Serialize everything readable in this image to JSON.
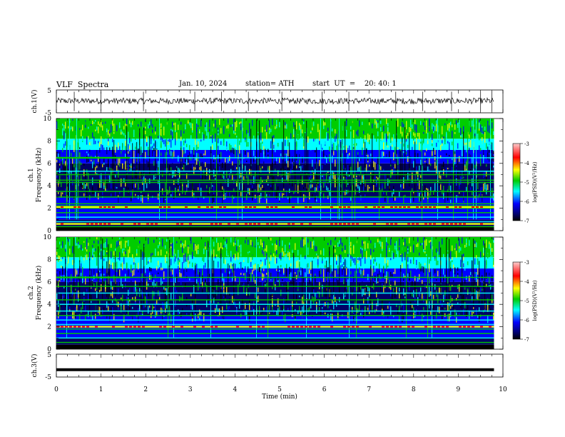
{
  "header": {
    "title": "VLF  Spectra",
    "date": "Jan. 10, 2024",
    "station": "station= ATH",
    "start": "start  UT  =    20: 40: 1"
  },
  "colors": {
    "black": "#000000",
    "navy": "#000066",
    "blue": "#0000ff",
    "cyan": "#00ffff",
    "green": "#00cc00",
    "yellow": "#ffff00",
    "red": "#ff0000",
    "pink": "#ffbbbb"
  },
  "chart_data": [
    {
      "type": "line",
      "id": "ch1-waveform",
      "ylabel": "ch.1(V)",
      "yticks": [
        "5",
        "-5"
      ],
      "ylim": [
        -5,
        5
      ],
      "xlim": [
        0,
        10
      ],
      "level": 0.2,
      "noise_amplitude": 0.6,
      "spikes": [
        0.4,
        1.0,
        1.95,
        3.1,
        3.7,
        4.3,
        5.05,
        5.95,
        6.55,
        7.6,
        8.2,
        8.85,
        9.5,
        9.75
      ]
    },
    {
      "type": "heatmap",
      "id": "ch1-spectrogram",
      "ylabel_1": "ch.1",
      "ylabel_2": "Frequency  (kHz)",
      "yticks": [
        "0",
        "2",
        "4",
        "6",
        "8",
        "10"
      ],
      "ylim": [
        0,
        10
      ],
      "xlim": [
        0,
        9.8
      ],
      "colorbar": {
        "label": "log(PSD)(V²/Hz)",
        "ticks": [
          "-3",
          "-4",
          "-5",
          "-6",
          "-7"
        ],
        "range": [
          -7,
          -3
        ]
      },
      "lines_khz": [
        0.35,
        0.6,
        0.8,
        1.2,
        1.6,
        2.0,
        2.2,
        2.4,
        3.0,
        3.5,
        4.3,
        4.5,
        5.0,
        5.3,
        6.5
      ],
      "red_lines_khz": [
        2.1,
        0.6
      ],
      "segment_line": {
        "khz": 6.5,
        "from_min": 0,
        "to_min": 1.65
      }
    },
    {
      "type": "heatmap",
      "id": "ch2-spectrogram",
      "ylabel_1": "ch.2",
      "ylabel_2": "Frequency  (kHz)",
      "yticks": [
        "0",
        "2",
        "4",
        "6",
        "8",
        "10"
      ],
      "ylim": [
        0,
        10
      ],
      "xlim": [
        0,
        9.8
      ],
      "colorbar": {
        "label": "log(PSD)(V²/Hz)",
        "ticks": [
          "-3",
          "-4",
          "-5",
          "-6",
          "-7"
        ],
        "range": [
          -7,
          -3
        ]
      },
      "lines_khz": [
        0.6,
        1.0,
        1.4,
        1.8,
        2.0,
        2.2,
        2.6,
        3.0,
        3.4,
        4.0,
        4.4,
        5.0,
        5.6,
        6.4
      ],
      "red_lines_khz": [
        2.0
      ],
      "segment_line": {
        "khz": 6.4,
        "from_min": 0,
        "to_min": 1.65
      }
    },
    {
      "type": "line",
      "id": "ch3-waveform",
      "ylabel": "ch.3(V)",
      "yticks": [
        "5",
        "-5"
      ],
      "ylim": [
        -5,
        5
      ],
      "xlim": [
        0,
        10
      ],
      "level": -1.8
    }
  ],
  "xaxis": {
    "label": "Time  (min)",
    "ticks": [
      "0",
      "1",
      "2",
      "3",
      "4",
      "5",
      "6",
      "7",
      "8",
      "9",
      "10"
    ],
    "range": [
      0,
      10
    ]
  }
}
